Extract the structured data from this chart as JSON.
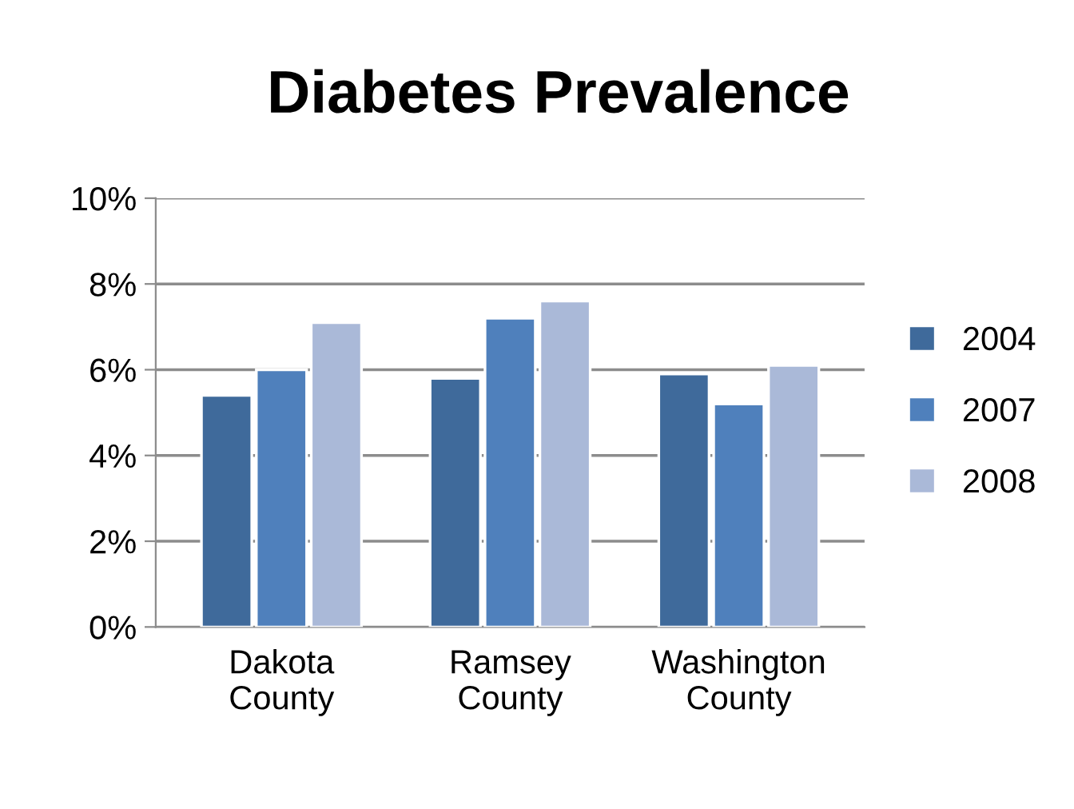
{
  "chart_data": {
    "type": "bar",
    "title": "Diabetes Prevalence",
    "categories": [
      "Dakota\nCounty",
      "Ramsey\nCounty",
      "Washington\nCounty"
    ],
    "series": [
      {
        "name": "2004",
        "color": "#3f6a9b",
        "values": [
          5.4,
          5.8,
          5.9
        ]
      },
      {
        "name": "2007",
        "color": "#4f80bc",
        "values": [
          6.0,
          7.2,
          5.2
        ]
      },
      {
        "name": "2008",
        "color": "#aab9d8",
        "values": [
          7.1,
          7.6,
          6.1
        ]
      }
    ],
    "ylim": [
      0,
      10
    ],
    "yticks": [
      {
        "value": 0,
        "label": "0%"
      },
      {
        "value": 2,
        "label": "2%"
      },
      {
        "value": 4,
        "label": "4%"
      },
      {
        "value": 6,
        "label": "6%"
      },
      {
        "value": 8,
        "label": "8%"
      },
      {
        "value": 10,
        "label": "10%"
      }
    ],
    "grid": "y",
    "legend": "right"
  }
}
